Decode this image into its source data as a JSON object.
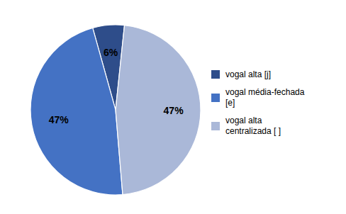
{
  "chart_data": {
    "type": "pie",
    "categories": [
      "vogal alta [j]",
      "vogal média-fechada\n[e]",
      "vogal alta\ncentralizada [ ]"
    ],
    "values": [
      6,
      47,
      47
    ],
    "value_labels": [
      "6%",
      "47%",
      "47%"
    ],
    "colors": [
      "#2e4d8a",
      "#4472c4",
      "#aab8d8"
    ],
    "data_labels": true,
    "legend": "right"
  }
}
